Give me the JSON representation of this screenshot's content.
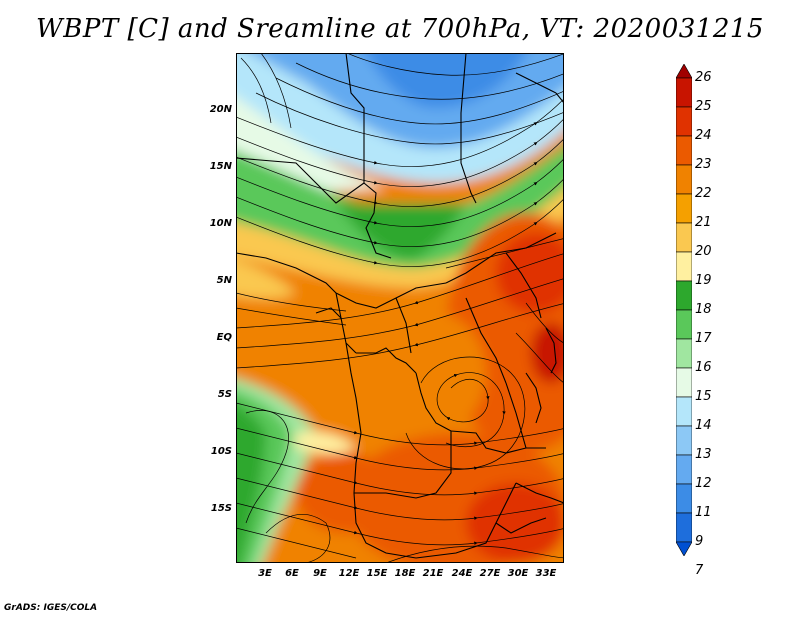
{
  "title": "WBPT [C] and Sreamline at 700hPa, VT: 2020031215",
  "credit": "GrADS: IGES/COLA",
  "map": {
    "y_ticks": [
      "20N",
      "15N",
      "10N",
      "5N",
      "EQ",
      "5S",
      "10S",
      "15S"
    ],
    "x_ticks": [
      "3E",
      "6E",
      "9E",
      "12E",
      "15E",
      "18E",
      "21E",
      "24E",
      "27E",
      "30E",
      "33E"
    ],
    "layers": [
      "WBPT shading",
      "700hPa streamlines",
      "country borders"
    ]
  },
  "colorbar": {
    "labels": [
      "26",
      "25",
      "24",
      "23",
      "22",
      "21",
      "20",
      "19",
      "18",
      "17",
      "16",
      "15",
      "14",
      "13",
      "12",
      "11",
      "9",
      "7"
    ],
    "colors": [
      "#a00000",
      "#c81400",
      "#e03200",
      "#eb5a00",
      "#f08200",
      "#f5a000",
      "#fac850",
      "#fff0a0",
      "#2da82d",
      "#5ac85a",
      "#a0e6a0",
      "#e6fae6",
      "#b4e6fa",
      "#8cc8f5",
      "#64aaf0",
      "#3c8ce6",
      "#1e6edc",
      "#0050d2"
    ]
  }
}
